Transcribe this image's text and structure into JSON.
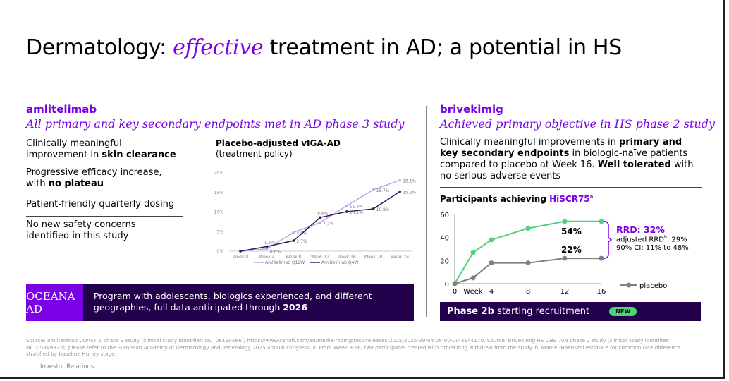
{
  "title": {
    "pre": "Dermatology: ",
    "em": "effective",
    "post": " treatment in AD; a potential in HS"
  },
  "left": {
    "drug": "amlitelimab",
    "subtitle": "All primary and key secondary endpoints met in AD phase 3 study",
    "bullets": [
      {
        "pre": "Clinically meaningful improvement in ",
        "bold": "skin clearance"
      },
      {
        "pre": "Progressive efficacy increase, with ",
        "bold": "no plateau"
      },
      {
        "pre": "Patient-friendly quarterly dosing",
        "bold": ""
      },
      {
        "pre": "No new safety concerns identified in this study",
        "bold": ""
      }
    ],
    "chart_title": "Placebo-adjusted vIGA-AD",
    "chart_subtitle": "(treatment policy)",
    "banner_tag": "OCEANA AD",
    "banner_text": "Program with adolescents, biologics experienced, and different geographies, full data anticipated through ",
    "banner_bold": "2026"
  },
  "right": {
    "drug": "brivekimig",
    "subtitle": "Achieved primary objective in HS phase 2 study",
    "desc": {
      "a": "Clinically meaningful improvements in ",
      "b": "primary and key secondary endpoints",
      "c": " in biologic-naïve patients compared to placebo at Week 16. ",
      "d": "Well tolerated",
      "e": " with no serious adverse events"
    },
    "chart_title": "Participants achieving ",
    "chart_title_accent": "HiSCR75",
    "chart_title_sup": "a",
    "rrd": "RRD: 32%",
    "adjusted": "adjusted RRD",
    "adjusted_sup": "b",
    "adjusted_val": ": 29%",
    "ci": "90% CI: 11% to 48%",
    "banner_bold": "Phase 2b",
    "banner_text": " starting recruitment",
    "badge": "NEW"
  },
  "chart_data": [
    {
      "type": "line",
      "title": "Placebo-adjusted vIGA-AD",
      "categories": [
        "Week 0",
        "Week 4",
        "Week 8",
        "Week 12",
        "Week 16",
        "Week 20",
        "Week 24"
      ],
      "yticks": [
        "0%",
        "5%",
        "10%",
        "15%",
        "20%"
      ],
      "ylim": [
        0,
        20
      ],
      "series": [
        {
          "name": "Amlitelimab Q12W",
          "color": "#c8a0e8",
          "values": [
            0,
            0.6,
            4.8,
            7.3,
            11.6,
            15.7,
            18.1
          ],
          "labels": [
            "",
            "0.6%",
            "4.8%",
            "7.3%",
            "11.6%",
            "15.7%",
            "18.1%"
          ]
        },
        {
          "name": "Amlitelimab Q4W",
          "color": "#2d1a5c",
          "values": [
            0,
            1.2,
            2.7,
            8.6,
            10.1,
            10.8,
            15.2
          ],
          "labels": [
            "",
            "1.2%",
            "2.7%",
            "8.6%",
            "10.1%",
            "10.8%",
            "15.2%"
          ]
        }
      ],
      "legend": "bottom"
    },
    {
      "type": "line",
      "title": "Participants achieving HiSCR75",
      "xlabel": "Week",
      "xticks": [
        "0",
        "4",
        "8",
        "12",
        "16"
      ],
      "yticks": [
        "0",
        "20",
        "40",
        "60"
      ],
      "ylim": [
        0,
        60
      ],
      "series": [
        {
          "name": "brivekimig",
          "color": "#4fd17a",
          "x": [
            0,
            2,
            4,
            8,
            12,
            16
          ],
          "values": [
            0,
            27,
            38,
            48,
            54,
            54
          ],
          "end_label": "54%"
        },
        {
          "name": "placebo",
          "color": "#808080",
          "x": [
            0,
            2,
            4,
            8,
            12,
            16
          ],
          "values": [
            0,
            5,
            18,
            18,
            22,
            22
          ],
          "end_label": "22%"
        }
      ],
      "legend": "right"
    }
  ],
  "footer": {
    "source": "Source: amlitelimab COAST 1 phase 3 study (clinical study identifier: NCT06130566); https://www.sanofi.com/en/media-room/press-releases/2025/2025-09-04-05-00-00-3144170.     Source: brivekimig HS OBSTAIN phase 2 study (clinical study identifier: NCT05849922); please refer to the European Academy of Dermatology and Venerology 2025 annual congress.     a. From Week 8-16, two participants treated with brivekimig withdrew from the study.     b. Mantel-Haenszel estimate for common rate difference stratified by baseline Hurley stage.",
    "label": "Investor Relations"
  }
}
